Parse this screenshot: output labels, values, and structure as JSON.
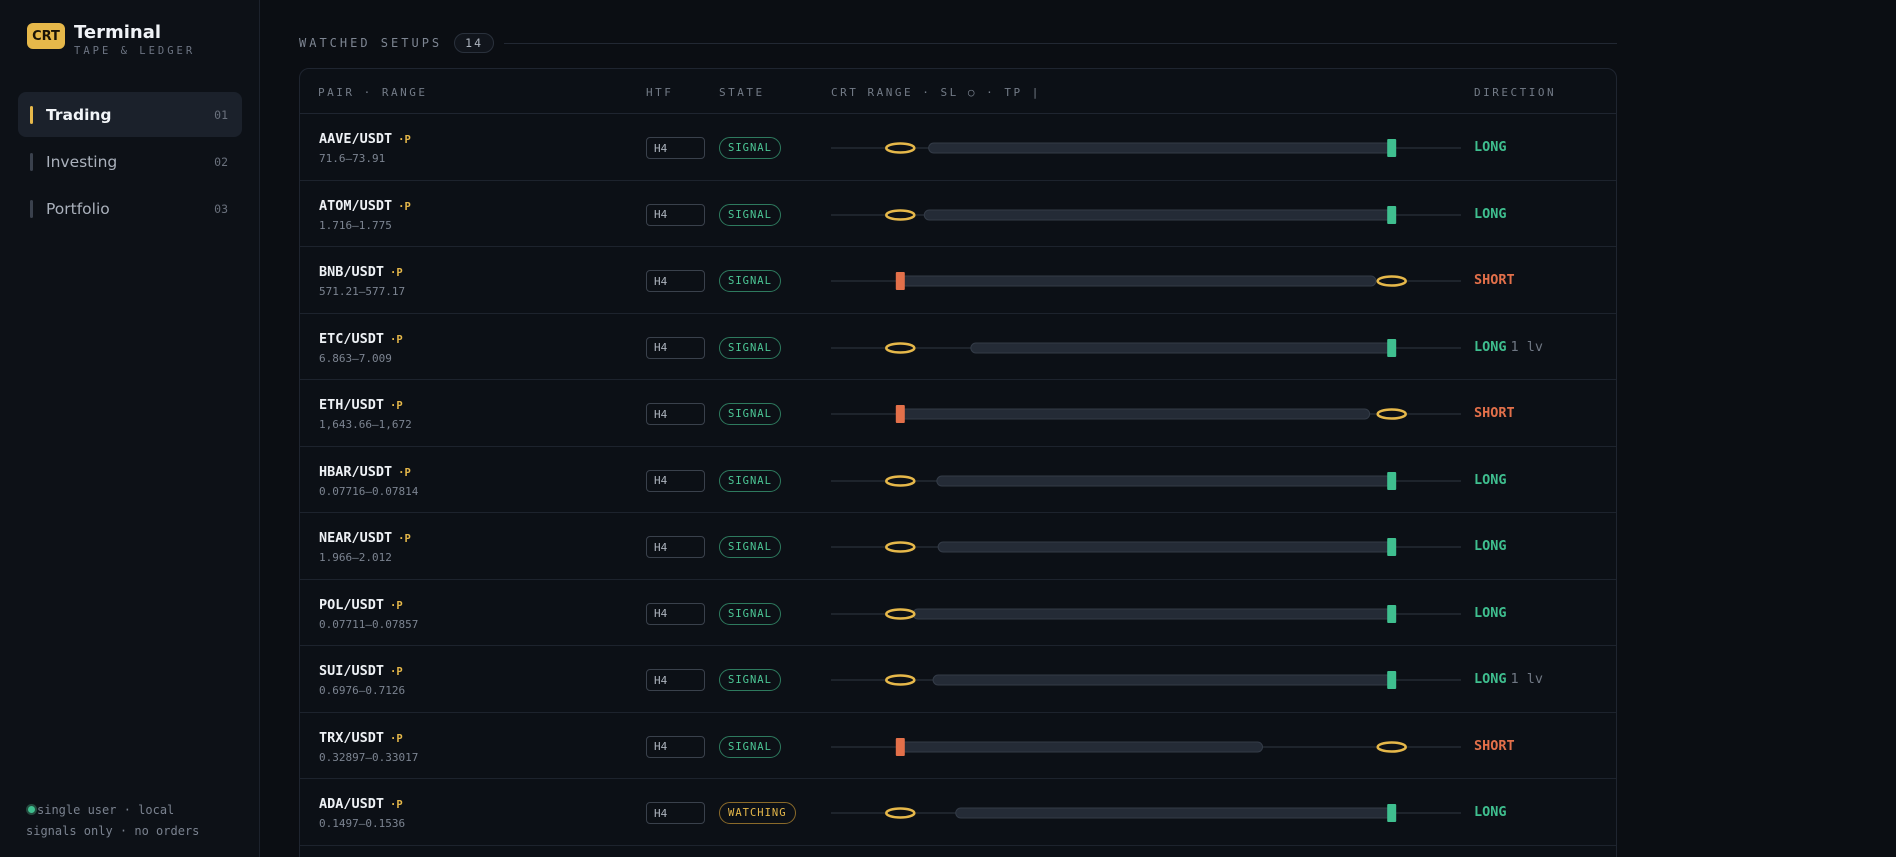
{
  "brand": {
    "badge": "CRT",
    "title": "Terminal",
    "subtitle": "TAPE & LEDGER"
  },
  "nav": [
    {
      "label": "Trading",
      "num": "01",
      "active": true
    },
    {
      "label": "Investing",
      "num": "02",
      "active": false
    },
    {
      "label": "Portfolio",
      "num": "03",
      "active": false
    }
  ],
  "footer": {
    "line1": "single user · local",
    "line2": "signals only · no orders"
  },
  "section": {
    "title": "WATCHED SETUPS",
    "count": "14"
  },
  "columns": {
    "pair": "PAIR · RANGE",
    "htf": "HTF",
    "state": "STATE",
    "range": "CRT RANGE · SL ○ · TP |",
    "direction": "DIRECTION"
  },
  "colors": {
    "accent": "#e6b84a",
    "long": "#3fbf8f",
    "short": "#e3704a"
  },
  "rows": [
    {
      "pair": "AAVE/USDT",
      "tag": "·P",
      "range": "71.6–73.91",
      "htf": "H4",
      "state": "SIGNAL",
      "dir": "LONG",
      "lv": "",
      "sl": 0.11,
      "tp": 0.89,
      "bar_start": 0.155,
      "bar_end": 0.89
    },
    {
      "pair": "ATOM/USDT",
      "tag": "·P",
      "range": "1.716–1.775",
      "htf": "H4",
      "state": "SIGNAL",
      "dir": "LONG",
      "lv": "",
      "sl": 0.11,
      "tp": 0.89,
      "bar_start": 0.148,
      "bar_end": 0.89
    },
    {
      "pair": "BNB/USDT",
      "tag": "·P",
      "range": "571.21–577.17",
      "htf": "H4",
      "state": "SIGNAL",
      "dir": "SHORT",
      "lv": "",
      "sl": 0.89,
      "tp": 0.11,
      "bar_start": 0.11,
      "bar_end": 0.865
    },
    {
      "pair": "ETC/USDT",
      "tag": "·P",
      "range": "6.863–7.009",
      "htf": "H4",
      "state": "SIGNAL",
      "dir": "LONG",
      "lv": "1 lv",
      "sl": 0.11,
      "tp": 0.89,
      "bar_start": 0.222,
      "bar_end": 0.89
    },
    {
      "pair": "ETH/USDT",
      "tag": "·P",
      "range": "1,643.66–1,672",
      "htf": "H4",
      "state": "SIGNAL",
      "dir": "SHORT",
      "lv": "",
      "sl": 0.89,
      "tp": 0.11,
      "bar_start": 0.11,
      "bar_end": 0.855
    },
    {
      "pair": "HBAR/USDT",
      "tag": "·P",
      "range": "0.07716–0.07814",
      "htf": "H4",
      "state": "SIGNAL",
      "dir": "LONG",
      "lv": "",
      "sl": 0.11,
      "tp": 0.89,
      "bar_start": 0.168,
      "bar_end": 0.89
    },
    {
      "pair": "NEAR/USDT",
      "tag": "·P",
      "range": "1.966–2.012",
      "htf": "H4",
      "state": "SIGNAL",
      "dir": "LONG",
      "lv": "",
      "sl": 0.11,
      "tp": 0.89,
      "bar_start": 0.17,
      "bar_end": 0.89
    },
    {
      "pair": "POL/USDT",
      "tag": "·P",
      "range": "0.07711–0.07857",
      "htf": "H4",
      "state": "SIGNAL",
      "dir": "LONG",
      "lv": "",
      "sl": 0.11,
      "tp": 0.89,
      "bar_start": 0.13,
      "bar_end": 0.89
    },
    {
      "pair": "SUI/USDT",
      "tag": "·P",
      "range": "0.6976–0.7126",
      "htf": "H4",
      "state": "SIGNAL",
      "dir": "LONG",
      "lv": "1 lv",
      "sl": 0.11,
      "tp": 0.89,
      "bar_start": 0.162,
      "bar_end": 0.89
    },
    {
      "pair": "TRX/USDT",
      "tag": "·P",
      "range": "0.32897–0.33017",
      "htf": "H4",
      "state": "SIGNAL",
      "dir": "SHORT",
      "lv": "",
      "sl": 0.89,
      "tp": 0.11,
      "bar_start": 0.11,
      "bar_end": 0.685
    },
    {
      "pair": "ADA/USDT",
      "tag": "·P",
      "range": "0.1497–0.1536",
      "htf": "H4",
      "state": "WATCHING",
      "dir": "LONG",
      "lv": "",
      "sl": 0.11,
      "tp": 0.89,
      "bar_start": 0.198,
      "bar_end": 0.89
    }
  ]
}
